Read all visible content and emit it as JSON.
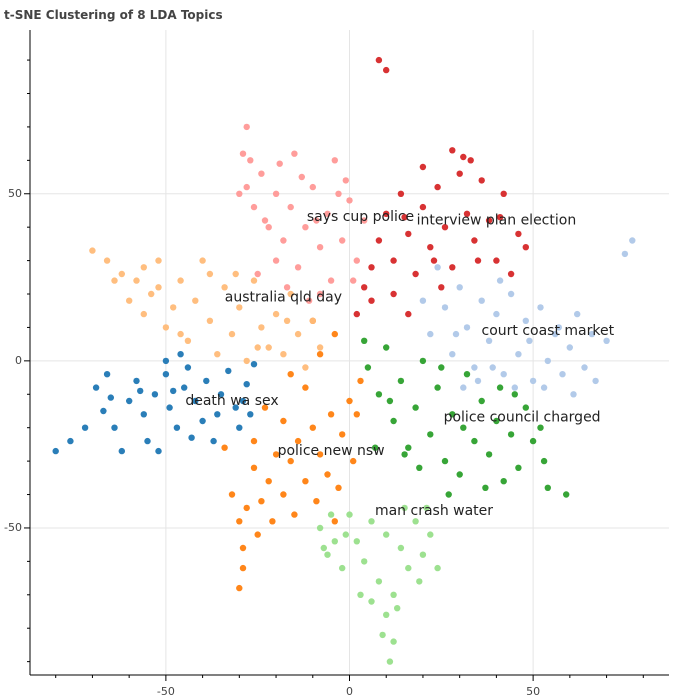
{
  "chart_data": {
    "type": "scatter",
    "title": "t-SNE Clustering of 8 LDA Topics",
    "xlabel": "",
    "ylabel": "",
    "xlim": [
      -87,
      87
    ],
    "ylim": [
      -94,
      99
    ],
    "grid": true,
    "x_ticks": [
      -50,
      0,
      50
    ],
    "y_ticks": [
      -50,
      0,
      50
    ],
    "x_tick_labels": [
      "-50",
      "0",
      "50"
    ],
    "y_tick_labels": [
      "-50",
      "0",
      "50"
    ],
    "series": [
      {
        "color": "#1f77b4",
        "points": [
          [
            -80,
            -27
          ],
          [
            -76,
            -24
          ],
          [
            -72,
            -20
          ],
          [
            -69,
            -8
          ],
          [
            -66,
            -4
          ],
          [
            -64,
            -20
          ],
          [
            -62,
            -27
          ],
          [
            -60,
            -12
          ],
          [
            -58,
            -6
          ],
          [
            -56,
            -16
          ],
          [
            -55,
            -24
          ],
          [
            -53,
            -10
          ],
          [
            -50,
            -4
          ],
          [
            -49,
            -14
          ],
          [
            -47,
            -20
          ],
          [
            -45,
            -8
          ],
          [
            -44,
            -2
          ],
          [
            -42,
            -12
          ],
          [
            -40,
            -18
          ],
          [
            -39,
            -6
          ],
          [
            -37,
            -24
          ],
          [
            -35,
            -10
          ],
          [
            -33,
            -3
          ],
          [
            -31,
            -14
          ],
          [
            -30,
            -20
          ],
          [
            -28,
            -7
          ],
          [
            -27,
            -16
          ],
          [
            -26,
            -1
          ],
          [
            -52,
            -27
          ],
          [
            -67,
            -15
          ],
          [
            -57,
            -9
          ],
          [
            -43,
            -23
          ],
          [
            -36,
            -16
          ],
          [
            -48,
            -9
          ],
          [
            -65,
            -11
          ],
          [
            -29,
            -12
          ],
          [
            -46,
            2
          ],
          [
            -50,
            0
          ]
        ]
      },
      {
        "color": "#ff7f0e",
        "points": [
          [
            -32,
            -40
          ],
          [
            -30,
            -48
          ],
          [
            -28,
            -44
          ],
          [
            -26,
            -32
          ],
          [
            -25,
            -52
          ],
          [
            -24,
            -42
          ],
          [
            -22,
            -36
          ],
          [
            -21,
            -48
          ],
          [
            -20,
            -28
          ],
          [
            -18,
            -40
          ],
          [
            -16,
            -30
          ],
          [
            -15,
            -46
          ],
          [
            -14,
            -24
          ],
          [
            -12,
            -36
          ],
          [
            -10,
            -20
          ],
          [
            -9,
            -42
          ],
          [
            -8,
            -28
          ],
          [
            -6,
            -34
          ],
          [
            -5,
            -16
          ],
          [
            -4,
            -48
          ],
          [
            -2,
            -22
          ],
          [
            0,
            -12
          ],
          [
            1,
            -30
          ],
          [
            3,
            -6
          ],
          [
            -30,
            -68
          ],
          [
            -29,
            -62
          ],
          [
            -29,
            -56
          ],
          [
            -4,
            8
          ],
          [
            -8,
            2
          ],
          [
            -12,
            -8
          ],
          [
            -18,
            -18
          ],
          [
            -34,
            -26
          ],
          [
            -23,
            -14
          ],
          [
            -10,
            12
          ],
          [
            -16,
            -4
          ],
          [
            -26,
            -24
          ],
          [
            -3,
            -38
          ],
          [
            2,
            -16
          ]
        ]
      },
      {
        "color": "#2ca02c",
        "points": [
          [
            5,
            -2
          ],
          [
            8,
            -10
          ],
          [
            10,
            4
          ],
          [
            12,
            -18
          ],
          [
            14,
            -6
          ],
          [
            16,
            -26
          ],
          [
            18,
            -14
          ],
          [
            20,
            0
          ],
          [
            22,
            -22
          ],
          [
            24,
            -8
          ],
          [
            26,
            -30
          ],
          [
            28,
            -16
          ],
          [
            30,
            -34
          ],
          [
            32,
            -4
          ],
          [
            34,
            -24
          ],
          [
            36,
            -12
          ],
          [
            38,
            -28
          ],
          [
            40,
            -18
          ],
          [
            42,
            -36
          ],
          [
            44,
            -22
          ],
          [
            46,
            -32
          ],
          [
            48,
            -14
          ],
          [
            50,
            -24
          ],
          [
            52,
            -20
          ],
          [
            54,
            -38
          ],
          [
            59,
            -40
          ],
          [
            53,
            -30
          ],
          [
            15,
            -28
          ],
          [
            11,
            -12
          ],
          [
            25,
            -2
          ],
          [
            31,
            -20
          ],
          [
            37,
            -38
          ],
          [
            45,
            -10
          ],
          [
            19,
            -32
          ],
          [
            4,
            6
          ],
          [
            7,
            -26
          ],
          [
            27,
            -40
          ],
          [
            41,
            -8
          ]
        ]
      },
      {
        "color": "#98df8a",
        "points": [
          [
            -8,
            -50
          ],
          [
            -6,
            -58
          ],
          [
            -4,
            -54
          ],
          [
            -2,
            -62
          ],
          [
            0,
            -46
          ],
          [
            2,
            -54
          ],
          [
            4,
            -60
          ],
          [
            6,
            -48
          ],
          [
            8,
            -66
          ],
          [
            10,
            -52
          ],
          [
            12,
            -70
          ],
          [
            14,
            -56
          ],
          [
            16,
            -62
          ],
          [
            18,
            -48
          ],
          [
            20,
            -58
          ],
          [
            22,
            -52
          ],
          [
            24,
            -62
          ],
          [
            10,
            -76
          ],
          [
            12,
            -84
          ],
          [
            11,
            -90
          ],
          [
            9,
            -82
          ],
          [
            6,
            -72
          ],
          [
            -5,
            -46
          ],
          [
            15,
            -44
          ],
          [
            19,
            -66
          ],
          [
            13,
            -74
          ],
          [
            -7,
            -56
          ],
          [
            3,
            -70
          ],
          [
            21,
            -44
          ],
          [
            -1,
            -52
          ]
        ]
      },
      {
        "color": "#aec7e8",
        "points": [
          [
            22,
            8
          ],
          [
            26,
            16
          ],
          [
            28,
            2
          ],
          [
            30,
            22
          ],
          [
            32,
            10
          ],
          [
            34,
            -2
          ],
          [
            36,
            18
          ],
          [
            38,
            6
          ],
          [
            40,
            14
          ],
          [
            42,
            -4
          ],
          [
            44,
            20
          ],
          [
            46,
            2
          ],
          [
            48,
            12
          ],
          [
            50,
            -6
          ],
          [
            52,
            16
          ],
          [
            54,
            0
          ],
          [
            56,
            8
          ],
          [
            58,
            -4
          ],
          [
            60,
            4
          ],
          [
            62,
            14
          ],
          [
            64,
            -2
          ],
          [
            66,
            8
          ],
          [
            70,
            6
          ],
          [
            77,
            36
          ],
          [
            75,
            32
          ],
          [
            24,
            28
          ],
          [
            20,
            18
          ],
          [
            35,
            -6
          ],
          [
            45,
            -8
          ],
          [
            57,
            10
          ],
          [
            61,
            -10
          ],
          [
            49,
            6
          ],
          [
            41,
            24
          ],
          [
            29,
            8
          ],
          [
            31,
            -8
          ],
          [
            39,
            -2
          ],
          [
            53,
            -8
          ],
          [
            67,
            -6
          ]
        ]
      },
      {
        "color": "#d62728",
        "points": [
          [
            2,
            14
          ],
          [
            4,
            22
          ],
          [
            6,
            28
          ],
          [
            8,
            36
          ],
          [
            10,
            44
          ],
          [
            12,
            30
          ],
          [
            14,
            50
          ],
          [
            16,
            38
          ],
          [
            18,
            26
          ],
          [
            20,
            46
          ],
          [
            22,
            34
          ],
          [
            24,
            52
          ],
          [
            26,
            40
          ],
          [
            28,
            28
          ],
          [
            30,
            56
          ],
          [
            32,
            44
          ],
          [
            34,
            36
          ],
          [
            36,
            54
          ],
          [
            38,
            42
          ],
          [
            40,
            30
          ],
          [
            42,
            50
          ],
          [
            44,
            26
          ],
          [
            46,
            38
          ],
          [
            48,
            34
          ],
          [
            8,
            90
          ],
          [
            10,
            87
          ],
          [
            28,
            63
          ],
          [
            31,
            61
          ],
          [
            33,
            60
          ],
          [
            20,
            58
          ],
          [
            12,
            20
          ],
          [
            25,
            22
          ],
          [
            35,
            30
          ],
          [
            16,
            14
          ],
          [
            6,
            18
          ],
          [
            23,
            30
          ],
          [
            41,
            43
          ],
          [
            15,
            43
          ]
        ]
      },
      {
        "color": "#ff9896",
        "points": [
          [
            -28,
            70
          ],
          [
            -27,
            60
          ],
          [
            -28,
            52
          ],
          [
            -26,
            46
          ],
          [
            -24,
            56
          ],
          [
            -22,
            40
          ],
          [
            -20,
            50
          ],
          [
            -18,
            36
          ],
          [
            -16,
            46
          ],
          [
            -14,
            28
          ],
          [
            -12,
            40
          ],
          [
            -10,
            52
          ],
          [
            -8,
            34
          ],
          [
            -6,
            44
          ],
          [
            -4,
            60
          ],
          [
            -2,
            36
          ],
          [
            0,
            48
          ],
          [
            2,
            30
          ],
          [
            4,
            42
          ],
          [
            -15,
            62
          ],
          [
            -30,
            50
          ],
          [
            -25,
            26
          ],
          [
            -17,
            22
          ],
          [
            -11,
            18
          ],
          [
            -5,
            24
          ],
          [
            -8,
            20
          ],
          [
            -20,
            30
          ],
          [
            -23,
            42
          ],
          [
            -13,
            55
          ],
          [
            -3,
            50
          ],
          [
            -1,
            54
          ],
          [
            1,
            24
          ],
          [
            -9,
            42
          ],
          [
            -19,
            59
          ],
          [
            -29,
            62
          ]
        ]
      },
      {
        "color": "#ffbb78",
        "points": [
          [
            -70,
            33
          ],
          [
            -66,
            30
          ],
          [
            -62,
            26
          ],
          [
            -58,
            24
          ],
          [
            -56,
            14
          ],
          [
            -54,
            20
          ],
          [
            -52,
            30
          ],
          [
            -50,
            10
          ],
          [
            -48,
            16
          ],
          [
            -46,
            24
          ],
          [
            -44,
            6
          ],
          [
            -42,
            18
          ],
          [
            -40,
            30
          ],
          [
            -38,
            12
          ],
          [
            -36,
            2
          ],
          [
            -34,
            22
          ],
          [
            -32,
            8
          ],
          [
            -30,
            16
          ],
          [
            -28,
            0
          ],
          [
            -26,
            24
          ],
          [
            -24,
            10
          ],
          [
            -22,
            4
          ],
          [
            -20,
            14
          ],
          [
            -18,
            2
          ],
          [
            -16,
            20
          ],
          [
            -14,
            8
          ],
          [
            -12,
            -2
          ],
          [
            -10,
            12
          ],
          [
            -8,
            4
          ],
          [
            -64,
            24
          ],
          [
            -60,
            18
          ],
          [
            -56,
            28
          ],
          [
            -46,
            8
          ],
          [
            -38,
            26
          ],
          [
            -31,
            26
          ],
          [
            -25,
            4
          ],
          [
            -17,
            12
          ],
          [
            -52,
            22
          ]
        ]
      }
    ],
    "cluster_labels": [
      {
        "text": "says cup police",
        "x": 3,
        "y": 43
      },
      {
        "text": "interview plan election",
        "x": 40,
        "y": 42
      },
      {
        "text": "australia qld day",
        "x": -18,
        "y": 19
      },
      {
        "text": "court coast market",
        "x": 54,
        "y": 9
      },
      {
        "text": "death wa sex",
        "x": -32,
        "y": -12
      },
      {
        "text": "police council charged",
        "x": 47,
        "y": -17
      },
      {
        "text": "police new nsw",
        "x": -5,
        "y": -27
      },
      {
        "text": "man crash water",
        "x": 23,
        "y": -45
      }
    ]
  }
}
